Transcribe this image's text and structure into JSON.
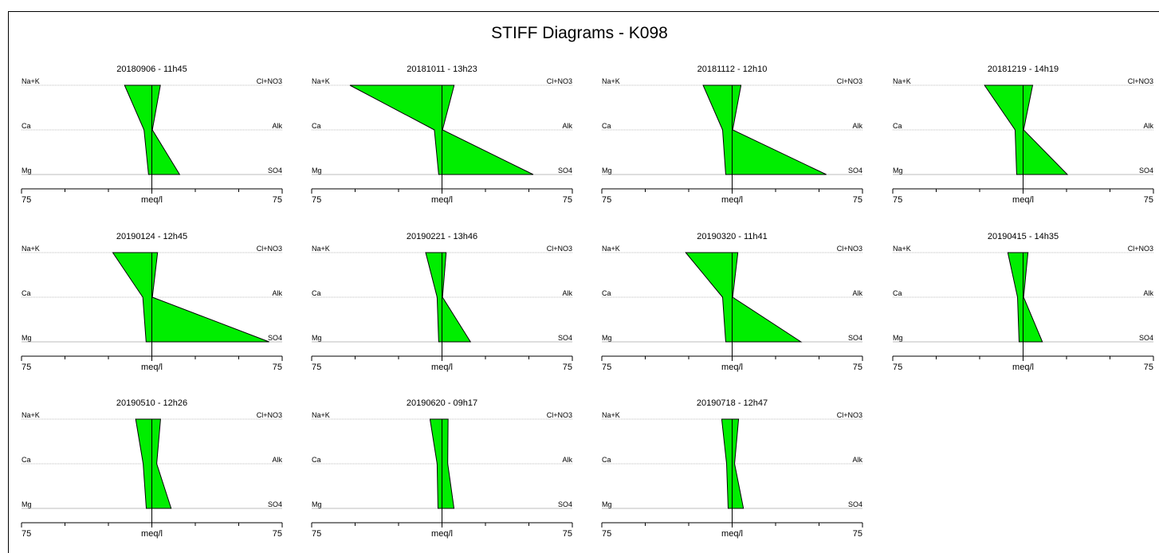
{
  "title": "STIFF Diagrams - K098",
  "colors": {
    "fill": "#00ee00",
    "stroke": "#000000",
    "guide": "#bdbdbd"
  },
  "chart_data": [
    {
      "type": "area",
      "title": "20180906 - 11h45",
      "left_labels": [
        "Na+K",
        "Ca",
        "Mg"
      ],
      "right_labels": [
        "Cl+NO3",
        "Alk",
        "SO4"
      ],
      "xlabel": "meq/l",
      "xlim": [
        -75,
        75
      ],
      "tick_labels": [
        "75",
        "75"
      ],
      "cations": [
        15.7,
        4.5,
        1.9
      ],
      "anions": [
        4.9,
        0.3,
        16.0
      ]
    },
    {
      "type": "area",
      "title": "20181011 - 13h23",
      "left_labels": [
        "Na+K",
        "Ca",
        "Mg"
      ],
      "right_labels": [
        "Cl+NO3",
        "Alk",
        "SO4"
      ],
      "xlabel": "meq/l",
      "xlim": [
        -75,
        75
      ],
      "tick_labels": [
        "75",
        "75"
      ],
      "cations": [
        53.0,
        4.4,
        1.9
      ],
      "anions": [
        7.0,
        0.3,
        52.5
      ]
    },
    {
      "type": "area",
      "title": "20181112 - 12h10",
      "left_labels": [
        "Na+K",
        "Ca",
        "Mg"
      ],
      "right_labels": [
        "Cl+NO3",
        "Alk",
        "SO4"
      ],
      "xlabel": "meq/l",
      "xlim": [
        -75,
        75
      ],
      "tick_labels": [
        "75",
        "75"
      ],
      "cations": [
        16.7,
        5.5,
        3.7
      ],
      "anions": [
        5.1,
        0.3,
        54.2
      ]
    },
    {
      "type": "area",
      "title": "20181219 - 14h19",
      "left_labels": [
        "Na+K",
        "Ca",
        "Mg"
      ],
      "right_labels": [
        "Cl+NO3",
        "Alk",
        "SO4"
      ],
      "xlabel": "meq/l",
      "xlim": [
        -75,
        75
      ],
      "tick_labels": [
        "75",
        "75"
      ],
      "cations": [
        22.2,
        4.6,
        3.7
      ],
      "anions": [
        5.5,
        0.3,
        25.5
      ]
    },
    {
      "type": "area",
      "title": "20190124 - 12h45",
      "left_labels": [
        "Na+K",
        "Ca",
        "Mg"
      ],
      "right_labels": [
        "Cl+NO3",
        "Alk",
        "SO4"
      ],
      "xlabel": "meq/l",
      "xlim": [
        -75,
        75
      ],
      "tick_labels": [
        "75",
        "75"
      ],
      "cations": [
        22.5,
        5.2,
        3.3
      ],
      "anions": [
        3.3,
        0.3,
        67.5
      ]
    },
    {
      "type": "area",
      "title": "20190221 - 13h46",
      "left_labels": [
        "Na+K",
        "Ca",
        "Mg"
      ],
      "right_labels": [
        "Cl+NO3",
        "Alk",
        "SO4"
      ],
      "xlabel": "meq/l",
      "xlim": [
        -75,
        75
      ],
      "tick_labels": [
        "75",
        "75"
      ],
      "cations": [
        9.4,
        2.8,
        1.9
      ],
      "anions": [
        2.4,
        0.3,
        16.4
      ]
    },
    {
      "type": "area",
      "title": "20190320 - 11h41",
      "left_labels": [
        "Na+K",
        "Ca",
        "Mg"
      ],
      "right_labels": [
        "Cl+NO3",
        "Alk",
        "SO4"
      ],
      "xlabel": "meq/l",
      "xlim": [
        -75,
        75
      ],
      "tick_labels": [
        "75",
        "75"
      ],
      "cations": [
        26.7,
        5.5,
        3.7
      ],
      "anions": [
        3.3,
        0.3,
        39.6
      ]
    },
    {
      "type": "area",
      "title": "20190415 - 14h35",
      "left_labels": [
        "Na+K",
        "Ca",
        "Mg"
      ],
      "right_labels": [
        "Cl+NO3",
        "Alk",
        "SO4"
      ],
      "xlabel": "meq/l",
      "xlim": [
        -75,
        75
      ],
      "tick_labels": [
        "75",
        "75"
      ],
      "cations": [
        8.8,
        3.2,
        2.3
      ],
      "anions": [
        2.8,
        0.3,
        11.1
      ]
    },
    {
      "type": "area",
      "title": "20190510 - 12h26",
      "left_labels": [
        "Na+K",
        "Ca",
        "Mg"
      ],
      "right_labels": [
        "Cl+NO3",
        "Alk",
        "SO4"
      ],
      "xlabel": "meq/l",
      "xlim": [
        -75,
        75
      ],
      "tick_labels": [
        "75",
        "75"
      ],
      "cations": [
        9.3,
        5.0,
        3.2
      ],
      "anions": [
        5.0,
        2.8,
        11.1
      ]
    },
    {
      "type": "area",
      "title": "20190620 - 09h17",
      "left_labels": [
        "Na+K",
        "Ca",
        "Mg"
      ],
      "right_labels": [
        "Cl+NO3",
        "Alk",
        "SO4"
      ],
      "xlabel": "meq/l",
      "xlim": [
        -75,
        75
      ],
      "tick_labels": [
        "75",
        "75"
      ],
      "cations": [
        6.9,
        2.8,
        2.3
      ],
      "anions": [
        3.5,
        3.3,
        6.9
      ]
    },
    {
      "type": "area",
      "title": "20190718 - 12h47",
      "left_labels": [
        "Na+K",
        "Ca",
        "Mg"
      ],
      "right_labels": [
        "Cl+NO3",
        "Alk",
        "SO4"
      ],
      "xlabel": "meq/l",
      "xlim": [
        -75,
        75
      ],
      "tick_labels": [
        "75",
        "75"
      ],
      "cations": [
        6.0,
        3.2,
        2.3
      ],
      "anions": [
        3.7,
        1.4,
        6.5
      ]
    }
  ]
}
